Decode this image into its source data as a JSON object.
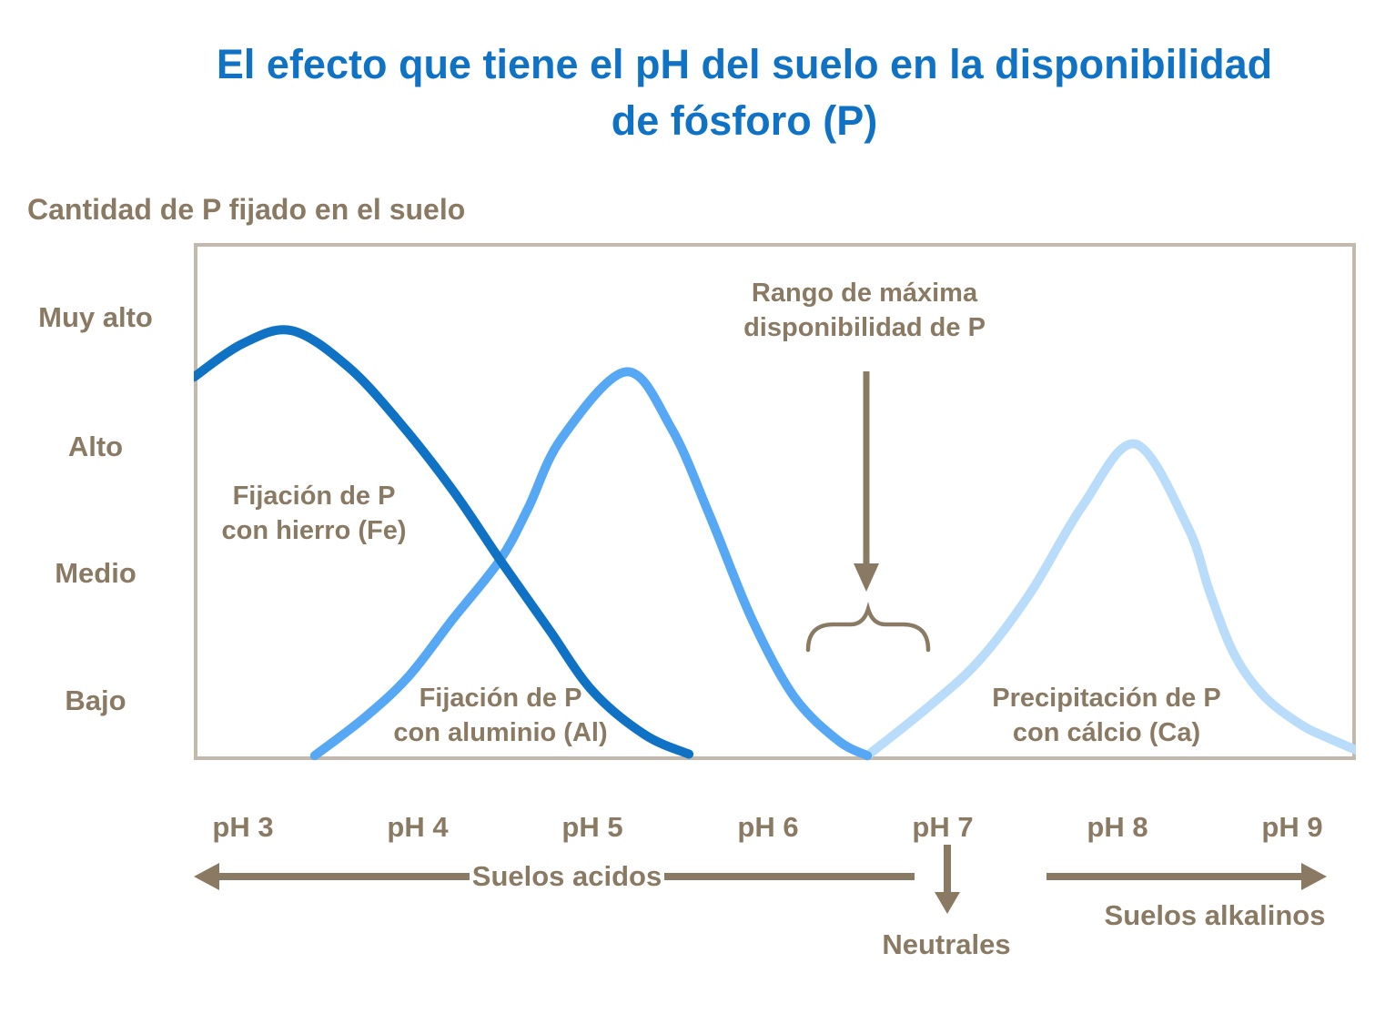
{
  "colors": {
    "title_blue": "#0F72C4",
    "text_brown": "#8B7A63",
    "box_border": "#C3B8AB",
    "curve_fe": "#0F72C4",
    "curve_al": "#56A8F4",
    "curve_ca": "#B8DCF9"
  },
  "chart_data": {
    "type": "line",
    "title": "El efecto que tiene el pH del suelo en la disponibilidad de fósforo (P)",
    "title_lines": [
      "El efecto que tiene el pH del suelo en la disponibilidad",
      "de fósforo (P)"
    ],
    "ylabel": "Cantidad de P fijado en el suelo",
    "xlabel": "",
    "grid": false,
    "legend": "none - curves labeled inline",
    "x_range_ph": [
      2.7,
      9.4
    ],
    "ylim": [
      0,
      100
    ],
    "y_ticks": [
      {
        "label": "Muy alto",
        "value": 85
      },
      {
        "label": "Alto",
        "value": 60
      },
      {
        "label": "Medio",
        "value": 36
      },
      {
        "label": "Bajo",
        "value": 11
      }
    ],
    "x_ticks": [
      {
        "label": "pH 3",
        "value": 3
      },
      {
        "label": "pH 4",
        "value": 4
      },
      {
        "label": "pH 5",
        "value": 5
      },
      {
        "label": "pH 6",
        "value": 6
      },
      {
        "label": "pH 7",
        "value": 7
      },
      {
        "label": "pH 8",
        "value": 8
      },
      {
        "label": "pH 9",
        "value": 9
      }
    ],
    "series": [
      {
        "name": "Fijación de P con hierro (Fe)",
        "color": "#0F72C4",
        "points": [
          [
            2.72,
            74
          ],
          [
            3.0,
            80.5
          ],
          [
            3.28,
            83
          ],
          [
            3.6,
            76
          ],
          [
            3.9,
            65
          ],
          [
            4.2,
            52
          ],
          [
            4.47,
            38.5
          ],
          [
            4.75,
            25
          ],
          [
            5.0,
            13
          ],
          [
            5.3,
            4.5
          ],
          [
            5.55,
            0.8
          ]
        ]
      },
      {
        "name": "Fijación de P con aluminio (Al)",
        "color": "#56A8F4",
        "points": [
          [
            3.41,
            0.5
          ],
          [
            3.7,
            8
          ],
          [
            3.95,
            16
          ],
          [
            4.2,
            27
          ],
          [
            4.47,
            38.5
          ],
          [
            4.63,
            48.5
          ],
          [
            4.82,
            62
          ],
          [
            5.19,
            75
          ],
          [
            5.45,
            64
          ],
          [
            5.67,
            47
          ],
          [
            5.91,
            27
          ],
          [
            6.15,
            12
          ],
          [
            6.4,
            3.5
          ],
          [
            6.57,
            0.5
          ]
        ]
      },
      {
        "name": "Precipitación de P con cálcio (Ca)",
        "color": "#B8DCF9",
        "points": [
          [
            6.57,
            0.5
          ],
          [
            6.92,
            10
          ],
          [
            7.21,
            19
          ],
          [
            7.5,
            32
          ],
          [
            7.8,
            49
          ],
          [
            8.1,
            61
          ],
          [
            8.4,
            45
          ],
          [
            8.53,
            32
          ],
          [
            8.67,
            20
          ],
          [
            8.84,
            12
          ],
          [
            9.05,
            6.5
          ],
          [
            9.2,
            4
          ],
          [
            9.37,
            1.5
          ]
        ]
      }
    ],
    "annotations": {
      "max_range": {
        "lines": [
          "Rango de máxima",
          "disponibilidad de P"
        ],
        "arrow_points_to_ph": 6.56,
        "brace_ph_range": [
          6.23,
          6.92
        ]
      },
      "fe_label": {
        "lines": [
          "Fijación de P",
          "con hierro (Fe)"
        ]
      },
      "al_label": {
        "lines": [
          "Fijación de P",
          "con aluminio (Al)"
        ]
      },
      "ca_label": {
        "lines": [
          "Precipitación de P",
          "con cálcio (Ca)"
        ]
      },
      "acid_soils": "Suelos acidos",
      "neutral_soils": "Neutrales",
      "alkaline_soils": "Suelos alkalinos"
    }
  }
}
